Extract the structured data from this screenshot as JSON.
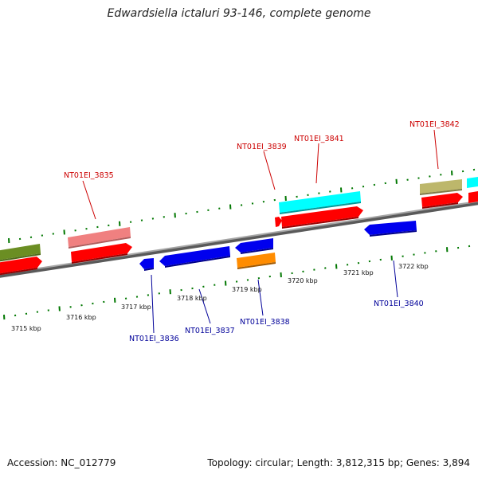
{
  "title": "Edwardsiella ictaluri 93-146, complete genome",
  "footer": {
    "accession": "Accession: NC_012779",
    "stats": "Topology: circular; Length: 3,812,315 bp; Genes: 3,894"
  },
  "colors": {
    "forward_gene_label": "#cc0000",
    "reverse_gene_label": "#000099",
    "tick": "#007700",
    "backbone": "#888888",
    "cds_forward": "#ff0000",
    "cds_reverse": "#0000ee",
    "feature_green": "#6b8e23",
    "feature_pink": "#f08080",
    "feature_cyan": "#00ffff",
    "feature_khaki": "#bdb76b",
    "feature_orange": "#ff8c00"
  },
  "scale_labels": [
    "3715 kbp",
    "3716 kbp",
    "3717 kbp",
    "3718 kbp",
    "3719 kbp",
    "3720 kbp",
    "3721 kbp",
    "3722 kbp"
  ],
  "gene_labels": [
    {
      "text": "NT01EI_3835",
      "strand": "forward"
    },
    {
      "text": "NT01EI_3839",
      "strand": "forward"
    },
    {
      "text": "NT01EI_3841",
      "strand": "forward"
    },
    {
      "text": "NT01EI_3842",
      "strand": "forward"
    },
    {
      "text": "NT01EI_3836",
      "strand": "reverse"
    },
    {
      "text": "NT01EI_3837",
      "strand": "reverse"
    },
    {
      "text": "NT01EI_3838",
      "strand": "reverse"
    },
    {
      "text": "NT01EI_3840",
      "strand": "reverse"
    }
  ]
}
